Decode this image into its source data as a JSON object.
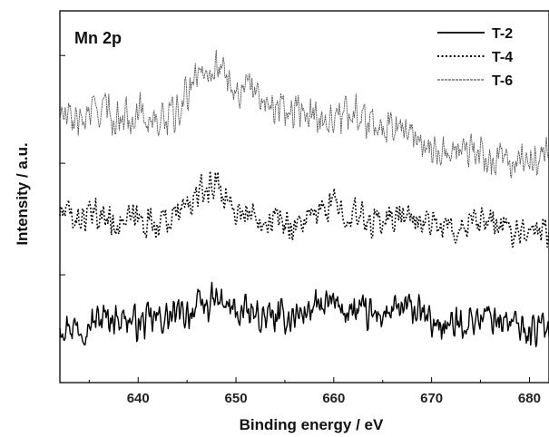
{
  "chart_data": {
    "type": "line",
    "title": "",
    "annotation": "Mn 2p",
    "xlabel": "Binding energy / eV",
    "ylabel": "Intensity / a.u.",
    "xlim": [
      632,
      682
    ],
    "x_ticks": [
      640,
      650,
      660,
      670,
      680
    ],
    "y_ticks_shown": false,
    "grid": false,
    "legend_position": "top-right",
    "series": [
      {
        "name": "T-2",
        "style": "solid",
        "color": "#000000",
        "x": [
          632,
          634,
          636,
          638,
          640,
          642,
          644,
          646,
          648,
          650,
          652,
          654,
          656,
          658,
          660,
          662,
          664,
          666,
          668,
          670,
          672,
          674,
          676,
          678,
          680,
          682
        ],
        "y": [
          0.16,
          0.15,
          0.17,
          0.18,
          0.16,
          0.17,
          0.18,
          0.2,
          0.22,
          0.19,
          0.18,
          0.17,
          0.18,
          0.2,
          0.21,
          0.19,
          0.18,
          0.19,
          0.2,
          0.16,
          0.15,
          0.17,
          0.18,
          0.16,
          0.14,
          0.15
        ]
      },
      {
        "name": "T-4",
        "style": "dotted",
        "color": "#000000",
        "x": [
          632,
          634,
          636,
          638,
          640,
          642,
          644,
          646,
          648,
          650,
          652,
          654,
          656,
          658,
          660,
          662,
          664,
          666,
          668,
          670,
          672,
          674,
          676,
          678,
          680,
          682
        ],
        "y": [
          0.46,
          0.44,
          0.45,
          0.43,
          0.44,
          0.43,
          0.45,
          0.5,
          0.54,
          0.46,
          0.45,
          0.44,
          0.42,
          0.45,
          0.48,
          0.45,
          0.43,
          0.45,
          0.44,
          0.43,
          0.41,
          0.42,
          0.43,
          0.41,
          0.42,
          0.41
        ]
      },
      {
        "name": "T-6",
        "style": "thin",
        "color": "#555555",
        "x": [
          632,
          634,
          636,
          638,
          640,
          642,
          644,
          646,
          648,
          650,
          652,
          654,
          656,
          658,
          660,
          662,
          664,
          666,
          668,
          670,
          672,
          674,
          676,
          678,
          680,
          682
        ],
        "y": [
          0.72,
          0.7,
          0.74,
          0.71,
          0.73,
          0.7,
          0.72,
          0.83,
          0.86,
          0.79,
          0.78,
          0.75,
          0.73,
          0.72,
          0.71,
          0.73,
          0.71,
          0.69,
          0.67,
          0.63,
          0.62,
          0.62,
          0.6,
          0.59,
          0.6,
          0.61
        ]
      }
    ]
  }
}
